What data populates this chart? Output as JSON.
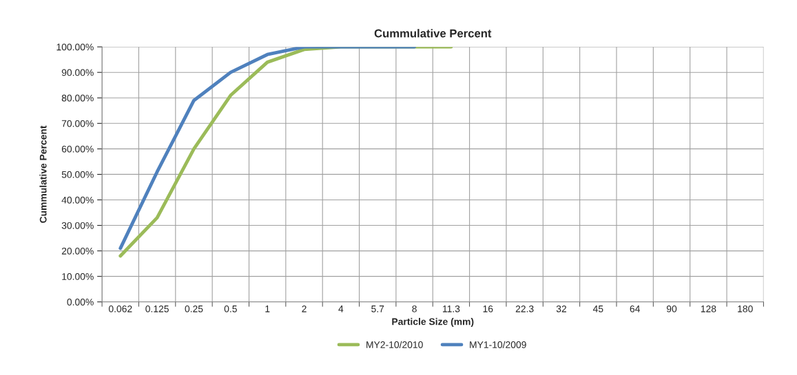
{
  "chart_data": {
    "type": "line",
    "title": "Cummulative Percent",
    "xlabel": "Particle Size (mm)",
    "ylabel": "Cummulative Percent",
    "categories": [
      "0.062",
      "0.125",
      "0.25",
      "0.5",
      "1",
      "2",
      "4",
      "5.7",
      "8",
      "11.3",
      "16",
      "22.3",
      "32",
      "45",
      "64",
      "90",
      "128",
      "180"
    ],
    "series": [
      {
        "name": "MY2-10/2010",
        "color": "#9bbb59",
        "values": [
          18,
          33,
          60,
          81,
          94,
          99,
          100,
          100,
          100,
          100,
          null,
          null,
          null,
          null,
          null,
          null,
          null,
          null
        ]
      },
      {
        "name": "MY1-10/2009",
        "color": "#4f81bd",
        "values": [
          21,
          51,
          79,
          90,
          97,
          100,
          100,
          100,
          100,
          null,
          null,
          null,
          null,
          null,
          null,
          null,
          null,
          null
        ]
      }
    ],
    "ylim": [
      0,
      100
    ],
    "yticks": [
      {
        "value": 0,
        "label": "0.00%"
      },
      {
        "value": 10,
        "label": "10.00%"
      },
      {
        "value": 20,
        "label": "20.00%"
      },
      {
        "value": 30,
        "label": "30.00%"
      },
      {
        "value": 40,
        "label": "40.00%"
      },
      {
        "value": 50,
        "label": "50.00%"
      },
      {
        "value": 60,
        "label": "60.00%"
      },
      {
        "value": 70,
        "label": "70.00%"
      },
      {
        "value": 80,
        "label": "80.00%"
      },
      {
        "value": 90,
        "label": "90.00%"
      },
      {
        "value": 100,
        "label": "100.00%"
      }
    ],
    "grid": true,
    "legend": "bottom",
    "marker": "none",
    "line_style": "solid"
  }
}
